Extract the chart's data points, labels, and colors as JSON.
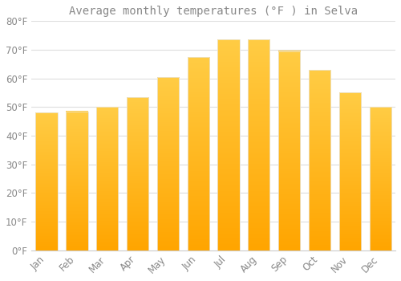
{
  "title": "Average monthly temperatures (°F ) in Selva",
  "months": [
    "Jan",
    "Feb",
    "Mar",
    "Apr",
    "May",
    "Jun",
    "Jul",
    "Aug",
    "Sep",
    "Oct",
    "Nov",
    "Dec"
  ],
  "values": [
    48,
    48.5,
    50,
    53.5,
    60.5,
    67.5,
    73.5,
    73.5,
    69.5,
    63,
    55,
    50
  ],
  "bar_color_top": "#FFCC44",
  "bar_color_bottom": "#FFA500",
  "bar_edge_color": "#E8E8E8",
  "background_color": "#FFFFFF",
  "plot_bg_color": "#FFFFFF",
  "grid_color": "#DDDDDD",
  "text_color": "#888888",
  "spine_color": "#CCCCCC",
  "ylim": [
    0,
    80
  ],
  "ytick_step": 10,
  "title_fontsize": 10,
  "tick_fontsize": 8.5,
  "bar_width": 0.72
}
